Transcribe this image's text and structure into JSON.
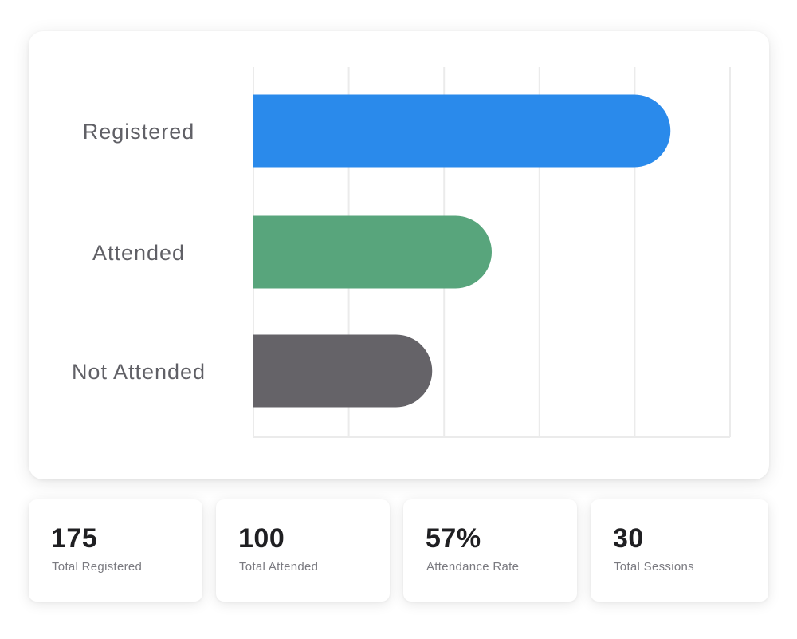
{
  "chart_data": {
    "type": "bar",
    "orientation": "horizontal",
    "categories": [
      "Registered",
      "Attended",
      "Not Attended"
    ],
    "values": [
      175,
      100,
      75
    ],
    "xlim": [
      0,
      200
    ],
    "grid": true,
    "colors": [
      "#2a8aeb",
      "#58a57c",
      "#656368"
    ],
    "gridline_color": "#ebebeb",
    "title": "",
    "xlabel": "",
    "ylabel": ""
  },
  "stats": [
    {
      "value": "175",
      "label": "Total Registered"
    },
    {
      "value": "100",
      "label": "Total Attended"
    },
    {
      "value": "57%",
      "label": "Attendance Rate"
    },
    {
      "value": "30",
      "label": "Total Sessions"
    }
  ]
}
